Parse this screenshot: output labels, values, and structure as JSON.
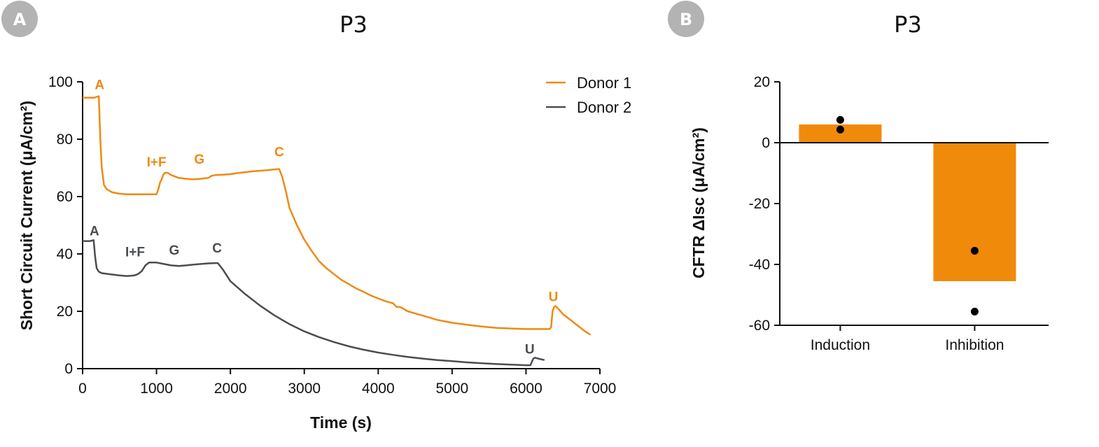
{
  "panels": [
    {
      "badge": "A",
      "title": "P3"
    },
    {
      "badge": "B",
      "title": "P3"
    }
  ],
  "colors": {
    "donor1": "#ee8a12",
    "donor2": "#4a4d52",
    "bar": "#f08a0a",
    "point": "#000000"
  },
  "chart_data": [
    {
      "type": "line",
      "title": "P3",
      "xlabel": "Time (s)",
      "ylabel": "Short Circuit Current (μA/cm²)",
      "xlim": [
        0,
        7000
      ],
      "ylim": [
        0,
        100
      ],
      "x_ticks": [
        "0",
        "1000",
        "2000",
        "3000",
        "4000",
        "5000",
        "6000",
        "7000"
      ],
      "y_ticks": [
        "0",
        "20",
        "40",
        "60",
        "80",
        "100"
      ],
      "legend": "top-right",
      "series": [
        {
          "name": "Donor 1",
          "x": [
            0,
            160,
            220,
            240,
            260,
            290,
            330,
            400,
            500,
            600,
            700,
            800,
            900,
            1000,
            1030,
            1050,
            1070,
            1090,
            1110,
            1150,
            1200,
            1250,
            1300,
            1400,
            1500,
            1600,
            1700,
            1750,
            1800,
            1900,
            2000,
            2100,
            2200,
            2300,
            2400,
            2500,
            2600,
            2660,
            2700,
            2750,
            2800,
            2900,
            3000,
            3100,
            3200,
            3300,
            3400,
            3500,
            3600,
            3700,
            3800,
            3900,
            4000,
            4100,
            4200,
            4250,
            4300,
            4400,
            4600,
            4800,
            5000,
            5200,
            5400,
            5600,
            5800,
            6000,
            6200,
            6320,
            6340,
            6360,
            6380,
            6400,
            6450,
            6500,
            6600,
            6700,
            6800,
            6870
          ],
          "values": [
            94.5,
            94.5,
            95,
            80,
            70,
            64,
            62.5,
            61.5,
            61,
            60.8,
            60.8,
            60.8,
            60.8,
            60.8,
            63,
            65,
            66,
            67.5,
            68.3,
            68.3,
            67.5,
            67,
            66.5,
            66.2,
            66,
            66.2,
            66.5,
            67.3,
            67.5,
            67.6,
            67.8,
            68.2,
            68.5,
            68.8,
            69,
            69.2,
            69.5,
            69.6,
            67,
            62,
            56,
            50,
            45,
            41,
            37.5,
            35,
            33,
            31,
            29.5,
            28,
            26.8,
            25.5,
            24.5,
            23.5,
            22.8,
            21.5,
            21.5,
            20,
            18.5,
            17,
            16,
            15.3,
            14.7,
            14.2,
            14,
            13.8,
            13.8,
            13.8,
            14.5,
            20,
            21.5,
            21.8,
            20.5,
            19,
            17,
            15,
            13,
            11.8
          ]
        },
        {
          "name": "Donor 2",
          "x": [
            0,
            100,
            150,
            170,
            190,
            220,
            260,
            350,
            500,
            600,
            700,
            750,
            800,
            850,
            900,
            1000,
            1100,
            1200,
            1300,
            1400,
            1500,
            1600,
            1700,
            1800,
            1830,
            1900,
            2000,
            2200,
            2400,
            2600,
            2800,
            3000,
            3200,
            3400,
            3600,
            3800,
            4000,
            4200,
            4400,
            4600,
            4800,
            5000,
            5200,
            5400,
            5600,
            5800,
            6000,
            6060,
            6080,
            6100,
            6120,
            6150,
            6200,
            6250
          ],
          "values": [
            44.5,
            44.5,
            44.8,
            39,
            35,
            33.8,
            33.3,
            33,
            32.5,
            32.3,
            32.5,
            33,
            34,
            36,
            37,
            37,
            36.5,
            36,
            35.8,
            36,
            36.3,
            36.5,
            36.7,
            36.8,
            36.8,
            34.5,
            30.5,
            26,
            22,
            18.5,
            15.5,
            13,
            11,
            9.3,
            7.8,
            6.6,
            5.6,
            4.8,
            4.1,
            3.5,
            3,
            2.6,
            2.2,
            1.9,
            1.6,
            1.4,
            1.2,
            1.2,
            2.5,
            3.5,
            3.8,
            3.6,
            3.3,
            3.0
          ]
        }
      ],
      "annotations": [
        {
          "series": "Donor 1",
          "text": "A",
          "x": 230,
          "y": 97.5
        },
        {
          "series": "Donor 1",
          "text": "I+F",
          "x": 1000,
          "y": 70.5
        },
        {
          "series": "Donor 1",
          "text": "G",
          "x": 1580,
          "y": 71.5
        },
        {
          "series": "Donor 1",
          "text": "C",
          "x": 2660,
          "y": 74
        },
        {
          "series": "Donor 1",
          "text": "U",
          "x": 6370,
          "y": 23.5
        },
        {
          "series": "Donor 2",
          "text": "A",
          "x": 160,
          "y": 46.5
        },
        {
          "series": "Donor 2",
          "text": "I+F",
          "x": 710,
          "y": 39.2
        },
        {
          "series": "Donor 2",
          "text": "G",
          "x": 1240,
          "y": 39.8
        },
        {
          "series": "Donor 2",
          "text": "C",
          "x": 1820,
          "y": 40.5
        },
        {
          "series": "Donor 2",
          "text": "U",
          "x": 6050,
          "y": 5.2
        }
      ]
    },
    {
      "type": "bar",
      "title": "P3",
      "xlabel": "",
      "ylabel": "CFTR ΔIsc (μA/cm²)",
      "ylim": [
        -60,
        20
      ],
      "y_ticks": [
        "20",
        "0",
        "-20",
        "-40",
        "-60"
      ],
      "categories": [
        "Induction",
        "Inhibition"
      ],
      "values": [
        6,
        -45.5
      ],
      "points": [
        [
          7.5,
          4.3
        ],
        [
          -35.5,
          -55.5
        ]
      ]
    }
  ]
}
